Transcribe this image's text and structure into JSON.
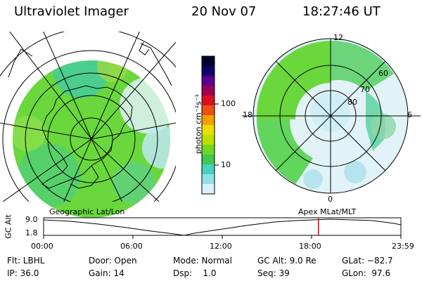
{
  "header": {
    "instrument": "Ultraviolet Imager",
    "date": "20 Nov 07",
    "time": "18:27:46 UT"
  },
  "left_panel": {
    "caption": "Geographic Lat/Lon"
  },
  "right_panel": {
    "caption": "Apex MLat/MLT",
    "mlt_labels": {
      "top": "12",
      "left": "18",
      "right": "6",
      "bottom": "0"
    },
    "lat_labels": [
      "60",
      "70",
      "80"
    ]
  },
  "colorbar": {
    "unit": "photon cm⁻²s⁻¹",
    "tick_100": "100",
    "tick_10": "10",
    "colors": [
      "#000030",
      "#100068",
      "#5a0090",
      "#a00050",
      "#d81020",
      "#ee5010",
      "#f2a000",
      "#ecdc00",
      "#b8e000",
      "#70d820",
      "#40c850",
      "#48d0c0",
      "#90e0e8",
      "#d8f2f8"
    ]
  },
  "timeline": {
    "axis_label": "GC Alt",
    "y_top": "9.0",
    "y_bottom": "1.8",
    "ticks": [
      "00:00",
      "06:00",
      "12:00",
      "18:00",
      "23:59"
    ],
    "marker_time_hours": 18.46,
    "marker_color": "#e00000"
  },
  "status": {
    "filter": "Flt: LBHL",
    "ip": "IP: 36.0",
    "door": "Door: Open",
    "gain": "Gain: 14",
    "mode": "Mode: Normal",
    "dsp": "Dsp:    1.0",
    "gc_alt": "GC Alt: 9.0 Re",
    "seq": "Seq: 39",
    "glat": "GLat: −82.7",
    "glon": "GLon:  97.6"
  }
}
